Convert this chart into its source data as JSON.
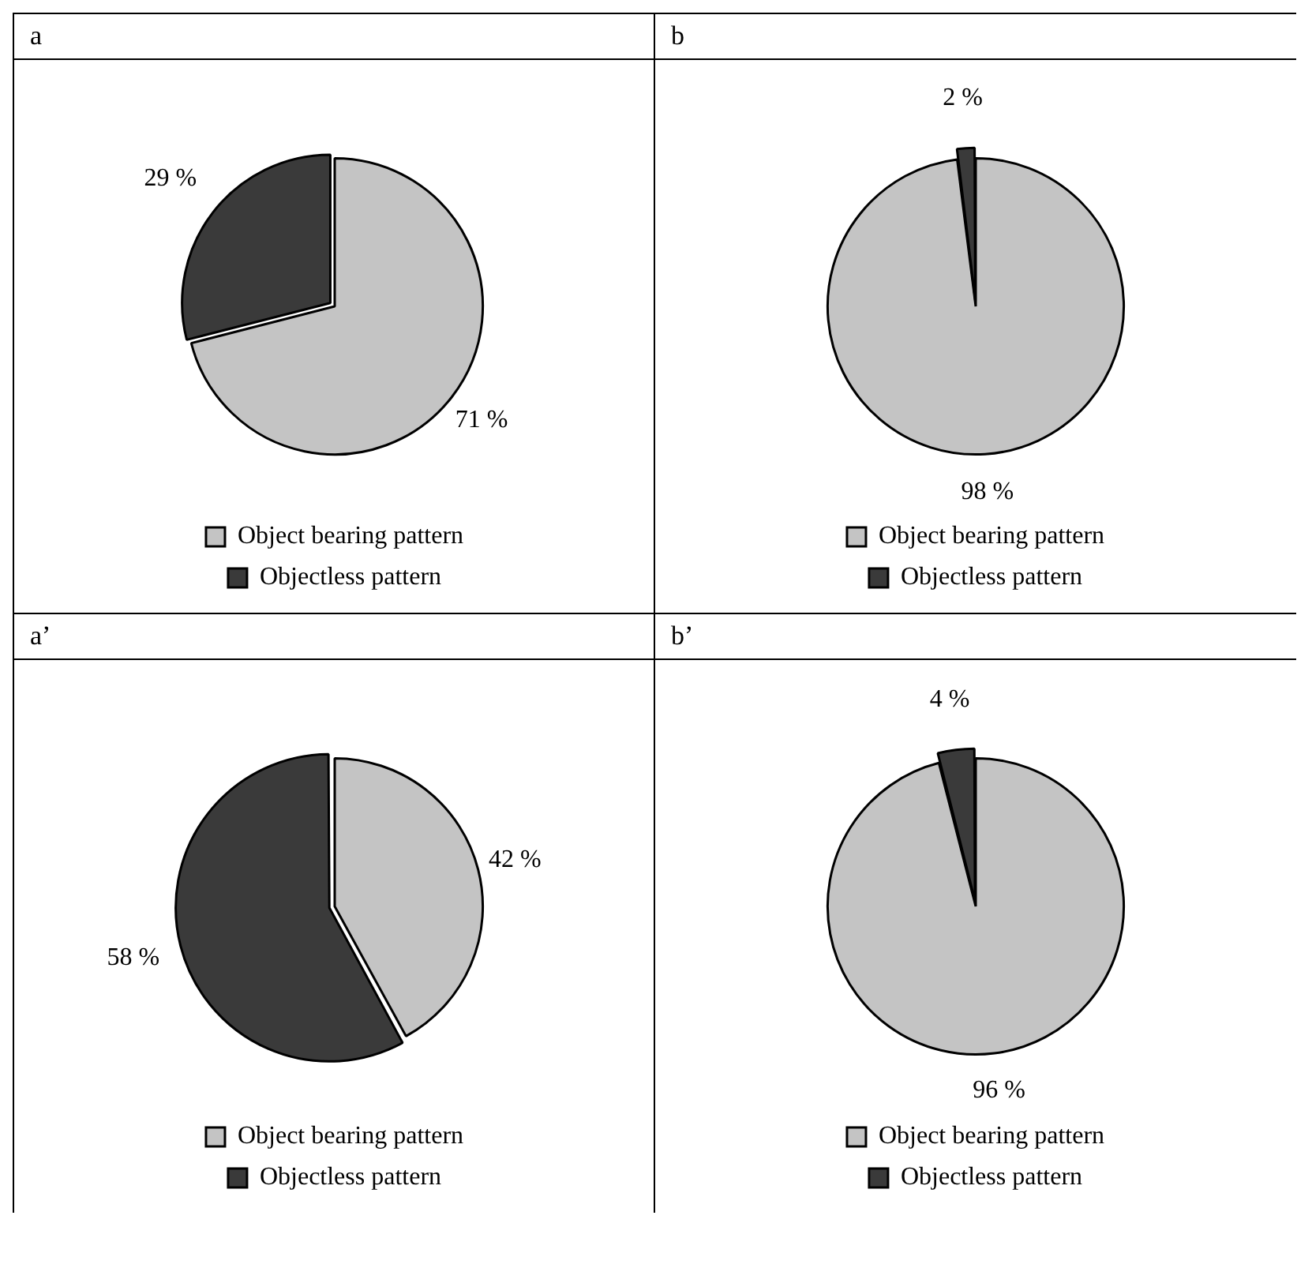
{
  "chart_data": [
    {
      "type": "pie",
      "title": "a",
      "categories": [
        "Object bearing pattern",
        "Objectless pattern"
      ],
      "values": [
        71,
        29
      ],
      "colors": [
        "#c4c4c4",
        "#3a3a3a"
      ],
      "value_labels": [
        "71 %",
        "29 %"
      ],
      "legend": "bottom"
    },
    {
      "type": "pie",
      "title": "b",
      "categories": [
        "Object bearing pattern",
        "Objectless pattern"
      ],
      "values": [
        98,
        2
      ],
      "colors": [
        "#c4c4c4",
        "#3a3a3a"
      ],
      "value_labels": [
        "98 %",
        "2 %"
      ],
      "legend": "bottom"
    },
    {
      "type": "pie",
      "title": "a’",
      "categories": [
        "Object bearing pattern",
        "Objectless pattern"
      ],
      "values": [
        42,
        58
      ],
      "colors": [
        "#c4c4c4",
        "#3a3a3a"
      ],
      "value_labels": [
        "42 %",
        "58 %"
      ],
      "legend": "bottom"
    },
    {
      "type": "pie",
      "title": "b’",
      "categories": [
        "Object bearing pattern",
        "Objectless pattern"
      ],
      "values": [
        96,
        4
      ],
      "colors": [
        "#c4c4c4",
        "#3a3a3a"
      ],
      "value_labels": [
        "96 %",
        "4 %"
      ],
      "legend": "bottom"
    }
  ]
}
